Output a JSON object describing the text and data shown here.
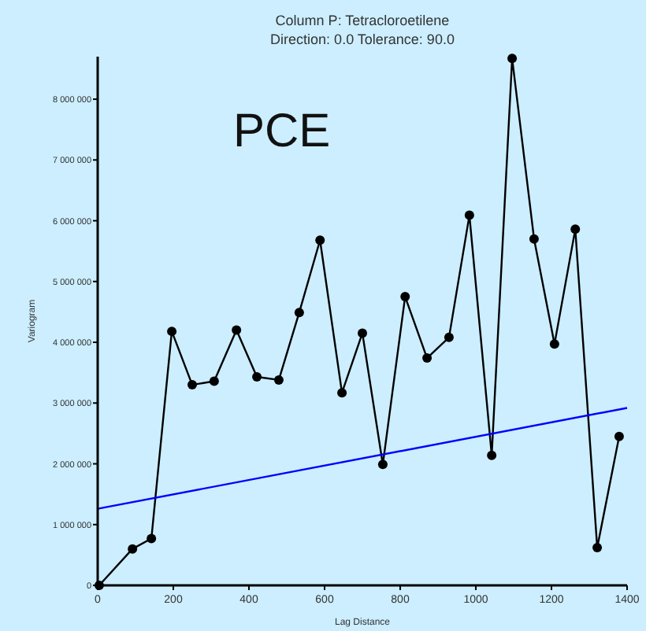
{
  "chart_data": {
    "type": "line",
    "title": "Column P:  Tetracloroetilene",
    "subtitle": "Direction: 0.0   Tolerance: 90.0",
    "xlabel": "Lag Distance",
    "ylabel": "Variogram",
    "annotations": [
      "PCE"
    ],
    "xlim": [
      0,
      1400
    ],
    "xticks": [
      0,
      200,
      400,
      600,
      800,
      1000,
      1200,
      1400
    ],
    "ylim": [
      0,
      8700000
    ],
    "yticks": [
      0,
      {
        "value": 1000000,
        "label": "1 000 000"
      },
      {
        "value": 2000000,
        "label": "2 000 000"
      },
      {
        "value": 3000000,
        "label": "3 000 000"
      },
      {
        "value": 4000000,
        "label": "4 000 000"
      },
      {
        "value": 5000000,
        "label": "5 000 000"
      },
      {
        "value": 6000000,
        "label": "6 000 000"
      },
      {
        "value": 7000000,
        "label": "7 000 000"
      },
      {
        "value": 8000000,
        "label": "8 000 000"
      }
    ],
    "grid": false,
    "series": [
      {
        "color": "#000000",
        "marker": "circle",
        "x": [
          4,
          92,
          142,
          196,
          250,
          308,
          367,
          421,
          479,
          533,
          588,
          646,
          700,
          754,
          813,
          871,
          929,
          983,
          1042,
          1096,
          1154,
          1208,
          1263,
          1321,
          1379
        ],
        "values": [
          0,
          600000,
          770000,
          4180000,
          3300000,
          3360000,
          4200000,
          3430000,
          3380000,
          4490000,
          5680000,
          3170000,
          4150000,
          1990000,
          4750000,
          3740000,
          4080000,
          6090000,
          2140000,
          8670000,
          5700000,
          3970000,
          5860000,
          620000,
          2450000
        ]
      },
      {
        "color": "#0000ff",
        "marker": "none",
        "x": [
          0,
          1400
        ],
        "values": [
          1260000,
          2920000
        ]
      }
    ]
  }
}
